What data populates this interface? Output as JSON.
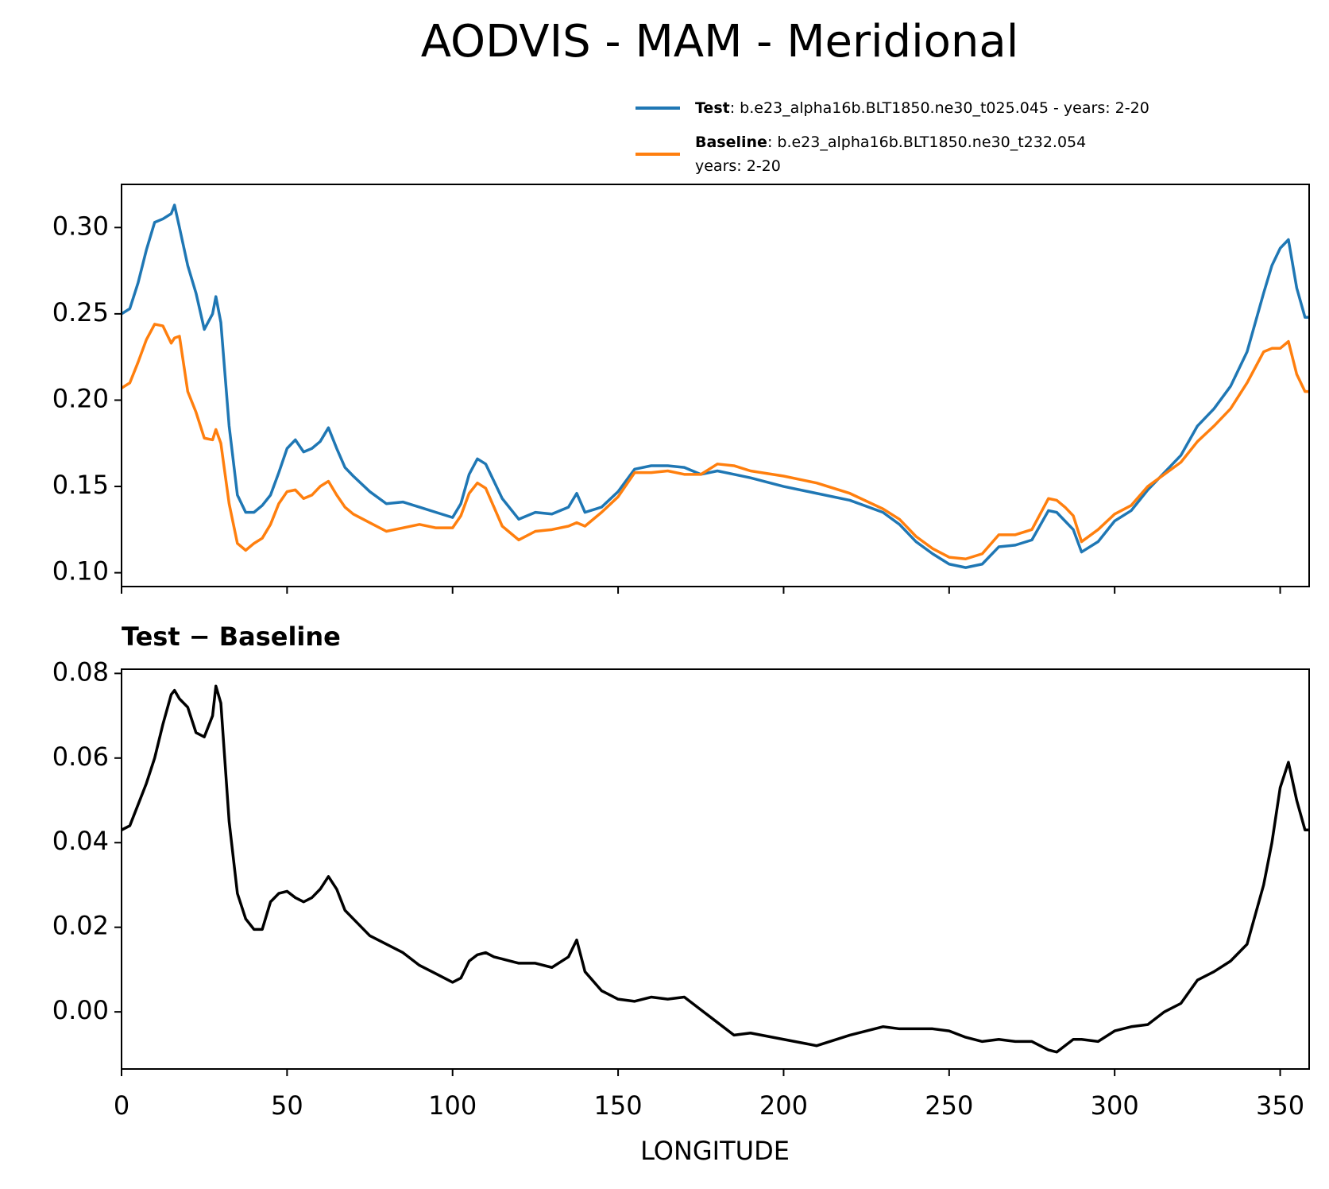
{
  "chart_data": [
    {
      "type": "line",
      "title": "AODVIS - MAM - Meridional",
      "x": [
        0,
        2.5,
        5,
        7.5,
        10,
        12.5,
        15,
        16,
        17.5,
        20,
        22.5,
        25,
        27.5,
        28.5,
        30,
        32.5,
        35,
        37.5,
        40,
        42.5,
        45,
        47.5,
        50,
        52.5,
        55,
        57.5,
        60,
        62.5,
        65,
        67.5,
        70,
        75,
        80,
        85,
        90,
        95,
        100,
        102.5,
        105,
        107.5,
        110,
        112.5,
        115,
        120,
        125,
        130,
        135,
        137.5,
        140,
        145,
        150,
        155,
        160,
        165,
        170,
        175,
        180,
        185,
        190,
        200,
        210,
        220,
        230,
        235,
        240,
        245,
        250,
        255,
        260,
        265,
        270,
        275,
        280,
        282.5,
        285,
        287.5,
        290,
        295,
        300,
        305,
        310,
        315,
        320,
        325,
        330,
        335,
        340,
        345,
        347.5,
        350,
        352.5,
        355,
        357.5,
        358.75
      ],
      "series": [
        {
          "name": "Test",
          "label": ": b.e23_alpha16b.BLT1850.ne30_t025.045 - years: 2-20",
          "color": "#1f77b4",
          "values": [
            0.25,
            0.253,
            0.268,
            0.287,
            0.303,
            0.305,
            0.308,
            0.313,
            0.3,
            0.278,
            0.262,
            0.241,
            0.25,
            0.26,
            0.245,
            0.185,
            0.145,
            0.135,
            0.135,
            0.139,
            0.145,
            0.158,
            0.172,
            0.177,
            0.17,
            0.172,
            0.176,
            0.184,
            0.172,
            0.161,
            0.156,
            0.147,
            0.14,
            0.141,
            0.138,
            0.135,
            0.132,
            0.14,
            0.157,
            0.166,
            0.163,
            0.153,
            0.143,
            0.131,
            0.135,
            0.134,
            0.138,
            0.146,
            0.135,
            0.138,
            0.147,
            0.16,
            0.162,
            0.162,
            0.161,
            0.157,
            0.159,
            0.157,
            0.155,
            0.15,
            0.146,
            0.142,
            0.135,
            0.128,
            0.118,
            0.111,
            0.105,
            0.103,
            0.105,
            0.115,
            0.116,
            0.119,
            0.136,
            0.135,
            0.13,
            0.125,
            0.112,
            0.118,
            0.13,
            0.136,
            0.148,
            0.158,
            0.168,
            0.185,
            0.195,
            0.208,
            0.228,
            0.262,
            0.278,
            0.288,
            0.293,
            0.265,
            0.248,
            0.248
          ]
        },
        {
          "name": "Baseline",
          "label": [
            ": b.e23_alpha16b.BLT1850.ne30_t232.054",
            "years: 2-20"
          ],
          "color": "#ff7f0e",
          "values": [
            0.207,
            0.21,
            0.222,
            0.235,
            0.244,
            0.243,
            0.233,
            0.236,
            0.237,
            0.205,
            0.193,
            0.178,
            0.177,
            0.183,
            0.175,
            0.14,
            0.117,
            0.113,
            0.117,
            0.12,
            0.128,
            0.14,
            0.147,
            0.148,
            0.143,
            0.145,
            0.15,
            0.153,
            0.145,
            0.138,
            0.134,
            0.129,
            0.124,
            0.126,
            0.128,
            0.126,
            0.126,
            0.133,
            0.146,
            0.152,
            0.149,
            0.138,
            0.127,
            0.119,
            0.124,
            0.125,
            0.127,
            0.129,
            0.127,
            0.135,
            0.144,
            0.158,
            0.158,
            0.159,
            0.157,
            0.157,
            0.163,
            0.162,
            0.159,
            0.156,
            0.152,
            0.146,
            0.137,
            0.131,
            0.121,
            0.114,
            0.109,
            0.108,
            0.111,
            0.122,
            0.122,
            0.125,
            0.143,
            0.142,
            0.138,
            0.133,
            0.118,
            0.125,
            0.134,
            0.139,
            0.15,
            0.157,
            0.164,
            0.176,
            0.185,
            0.195,
            0.21,
            0.228,
            0.23,
            0.23,
            0.234,
            0.215,
            0.205,
            0.205
          ]
        }
      ],
      "legend": "upper right",
      "xlim": [
        0,
        358.75
      ],
      "xticks": [
        0,
        50,
        100,
        150,
        200,
        250,
        300,
        350
      ],
      "xticklabels": false,
      "ylim": [
        0.092,
        0.325
      ],
      "yticks": [
        {
          "value": 0.1,
          "label": "0.10"
        },
        0.15,
        {
          "value": 0.2,
          "label": "0.20"
        },
        0.25,
        {
          "value": 0.3,
          "label": "0.30"
        }
      ]
    },
    {
      "type": "line",
      "subtitle": "Test − Baseline",
      "xlabel": "LONGITUDE",
      "x": [
        0,
        2.5,
        5,
        7.5,
        10,
        12.5,
        15,
        16,
        17.5,
        20,
        22.5,
        25,
        27.5,
        28.5,
        30,
        32.5,
        35,
        37.5,
        40,
        42.5,
        45,
        47.5,
        50,
        52.5,
        55,
        57.5,
        60,
        62.5,
        65,
        67.5,
        70,
        75,
        80,
        85,
        90,
        95,
        100,
        102.5,
        105,
        107.5,
        110,
        112.5,
        115,
        120,
        125,
        130,
        135,
        137.5,
        140,
        145,
        150,
        155,
        160,
        165,
        170,
        175,
        180,
        185,
        190,
        200,
        210,
        220,
        230,
        235,
        240,
        245,
        250,
        255,
        260,
        265,
        270,
        275,
        280,
        282.5,
        285,
        287.5,
        290,
        295,
        300,
        305,
        310,
        315,
        320,
        325,
        330,
        335,
        340,
        345,
        347.5,
        350,
        352.5,
        355,
        357.5,
        358.75
      ],
      "series": [
        {
          "color": "#000000",
          "values": [
            0.043,
            0.044,
            0.049,
            0.054,
            0.06,
            0.068,
            0.075,
            0.076,
            0.074,
            0.072,
            0.066,
            0.065,
            0.07,
            0.077,
            0.073,
            0.045,
            0.028,
            0.022,
            0.0195,
            0.0195,
            0.026,
            0.028,
            0.0285,
            0.027,
            0.026,
            0.027,
            0.029,
            0.032,
            0.029,
            0.024,
            0.022,
            0.018,
            0.016,
            0.014,
            0.011,
            0.009,
            0.007,
            0.008,
            0.012,
            0.0135,
            0.014,
            0.013,
            0.0125,
            0.0115,
            0.0115,
            0.0105,
            0.013,
            0.017,
            0.0095,
            0.005,
            0.003,
            0.0025,
            0.0035,
            0.003,
            0.0035,
            0.0005,
            -0.0025,
            -0.0055,
            -0.005,
            -0.0065,
            -0.008,
            -0.0055,
            -0.0035,
            -0.004,
            -0.004,
            -0.004,
            -0.0045,
            -0.006,
            -0.007,
            -0.0065,
            -0.007,
            -0.007,
            -0.009,
            -0.0095,
            -0.008,
            -0.0065,
            -0.0065,
            -0.007,
            -0.0045,
            -0.0035,
            -0.003,
            0.0,
            0.002,
            0.0075,
            0.0095,
            0.012,
            0.016,
            0.03,
            0.04,
            0.053,
            0.059,
            0.05,
            0.043,
            0.043
          ]
        }
      ],
      "xlim": [
        0,
        358.75
      ],
      "xticks": [
        0,
        50,
        100,
        150,
        200,
        250,
        300,
        350
      ],
      "xticklabels": true,
      "ylim": [
        -0.0135,
        0.081
      ],
      "yticks": [
        {
          "value": 0,
          "label": "0.00"
        },
        0.02,
        0.04,
        0.06,
        0.08
      ]
    }
  ]
}
